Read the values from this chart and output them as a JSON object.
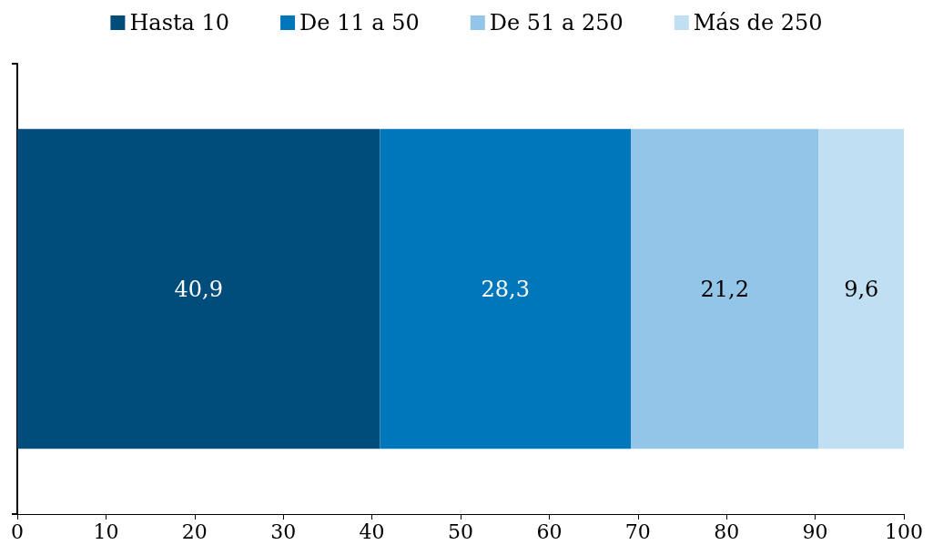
{
  "chart_data": {
    "type": "bar",
    "orientation": "horizontal",
    "stacked": true,
    "categories": [
      null
    ],
    "series": [
      {
        "name": "Hasta 10",
        "color": "#004c7b",
        "values": [
          40.9
        ],
        "value_labels": [
          "40,9"
        ]
      },
      {
        "name": "De 11 a 50",
        "color": "#0076bb",
        "values": [
          28.3
        ],
        "value_labels": [
          "28,3"
        ]
      },
      {
        "name": "De 51 a 250",
        "color": "#92c5e8",
        "values": [
          21.2
        ],
        "value_labels": [
          "21,2"
        ]
      },
      {
        "name": "Más de 250",
        "color": "#c0dff3",
        "values": [
          9.6
        ],
        "value_labels": [
          "9,6"
        ]
      }
    ],
    "xlim": [
      0,
      100
    ],
    "xticks": [
      0,
      10,
      20,
      30,
      40,
      50,
      60,
      70,
      80,
      90,
      100
    ],
    "grid": false,
    "legend": "top"
  }
}
